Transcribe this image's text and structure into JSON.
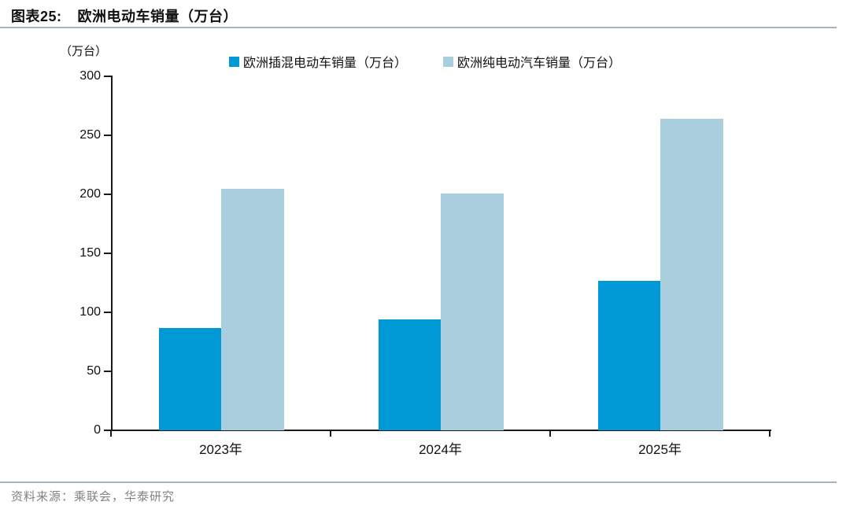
{
  "header": {
    "title_prefix": "图表25:",
    "title_text": "欧洲电动车销量（万台）"
  },
  "chart_data": {
    "type": "bar",
    "title": "欧洲电动车销量（万台）",
    "unit_label": "（万台）",
    "categories": [
      "2023年",
      "2024年",
      "2025年"
    ],
    "series": [
      {
        "name": "欧洲插混电动车销量（万台）",
        "color": "#0099d5",
        "values": [
          87,
          94,
          127
        ]
      },
      {
        "name": "欧洲纯电动汽车销量（万台）",
        "color": "#a9cede",
        "values": [
          205,
          201,
          264
        ]
      }
    ],
    "ylabel": "（万台）",
    "xlabel": "",
    "ylim": [
      0,
      300
    ],
    "ytick_step": 50,
    "yticks": [
      0,
      50,
      100,
      150,
      200,
      250,
      300
    ],
    "grid": false,
    "legend_position": "top-center"
  },
  "footer": {
    "source": "资料来源：乘联会，华泰研究"
  }
}
